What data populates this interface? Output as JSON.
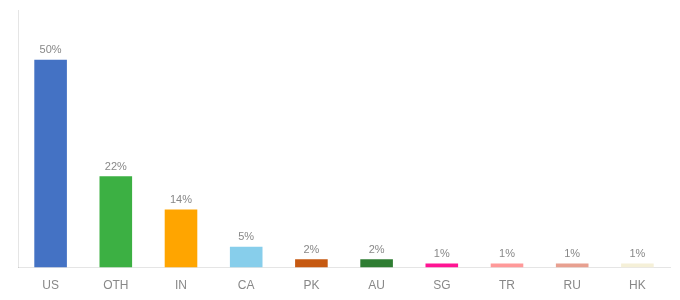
{
  "chart_data": {
    "type": "bar",
    "categories": [
      "US",
      "OTH",
      "IN",
      "CA",
      "PK",
      "AU",
      "SG",
      "TR",
      "RU",
      "HK"
    ],
    "values": [
      50,
      22,
      14,
      5,
      2,
      2,
      1,
      1,
      1,
      1
    ],
    "value_labels": [
      "50%",
      "22%",
      "14%",
      "5%",
      "2%",
      "2%",
      "1%",
      "1%",
      "1%",
      "1%"
    ],
    "colors": [
      "#4472C4",
      "#3CB043",
      "#FFA500",
      "#87CEEB",
      "#C65911",
      "#2E7D32",
      "#FF1493",
      "#FF9999",
      "#E8A090",
      "#F5F0D8"
    ],
    "ylim": [
      0,
      62
    ],
    "grid": false,
    "data_labels": true,
    "tick_labels": "x"
  }
}
